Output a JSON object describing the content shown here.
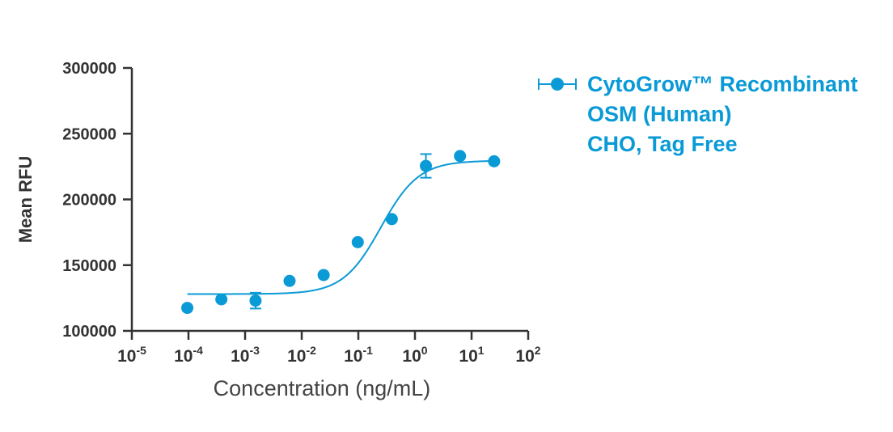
{
  "chart_data": {
    "type": "scatter",
    "xscale": "log",
    "xlim": [
      1e-05,
      100
    ],
    "ylim": [
      100000,
      300000
    ],
    "xticks": [
      {
        "base": "10",
        "exp": "-5"
      },
      {
        "base": "10",
        "exp": "-4"
      },
      {
        "base": "10",
        "exp": "-3"
      },
      {
        "base": "10",
        "exp": "-2"
      },
      {
        "base": "10",
        "exp": "-1"
      },
      {
        "base": "10",
        "exp": "0"
      },
      {
        "base": "10",
        "exp": "1"
      },
      {
        "base": "10",
        "exp": "2"
      }
    ],
    "yticks": [
      "100000",
      "150000",
      "200000",
      "250000",
      "300000"
    ],
    "xlabel": "Concentration (ng/mL)",
    "ylabel": "Mean RFU",
    "color": "#0a9ad6",
    "legend_position": "right",
    "series": [
      {
        "name": "CytoGrow™ Recombinant\nOSM (Human)\nCHO, Tag Free",
        "points": [
          {
            "x": 9.54e-05,
            "y": 117500
          },
          {
            "x": 0.000381,
            "y": 124000
          },
          {
            "x": 0.00153,
            "y": 123000,
            "err": 6000
          },
          {
            "x": 0.0061,
            "y": 138000
          },
          {
            "x": 0.0244,
            "y": 142500
          },
          {
            "x": 0.0977,
            "y": 167500
          },
          {
            "x": 0.39,
            "y": 185000
          },
          {
            "x": 1.56,
            "y": 225500,
            "err": 9000
          },
          {
            "x": 6.25,
            "y": 233000
          },
          {
            "x": 25,
            "y": 229000
          }
        ],
        "fit": {
          "bottom": 128000,
          "top": 229500,
          "ec50": 0.25,
          "hill": 1.3,
          "xmin": 9.54e-05,
          "xmax": 25
        }
      }
    ]
  }
}
